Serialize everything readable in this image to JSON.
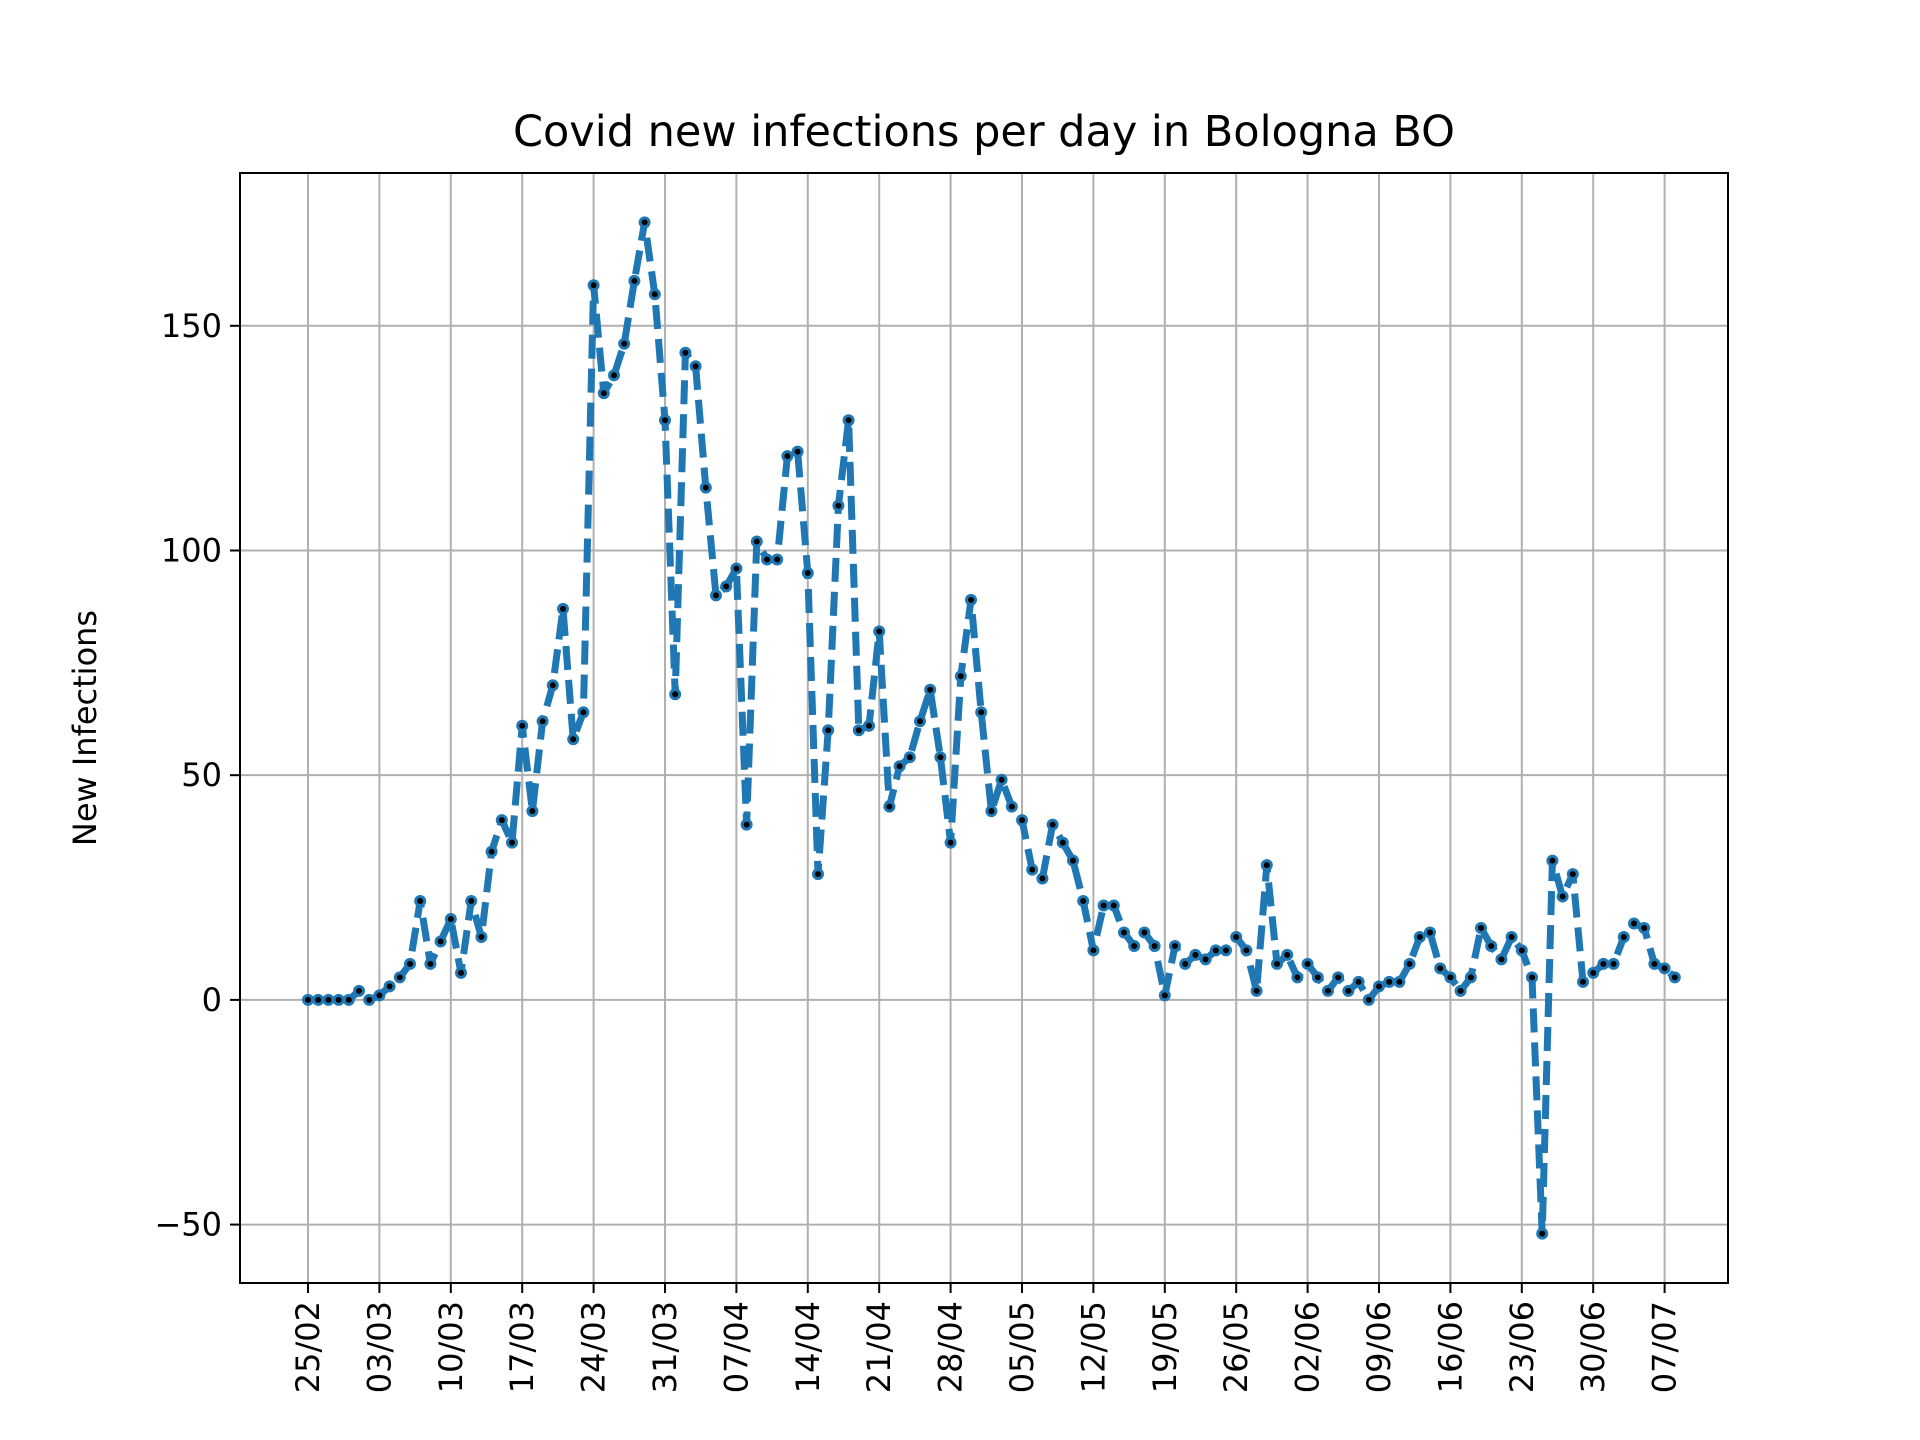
{
  "chart_data": {
    "type": "line",
    "title": "Covid new infections per day in Bologna BO",
    "xlabel": "",
    "ylabel": "New Infections",
    "x_ticks": [
      "25/02",
      "03/03",
      "10/03",
      "17/03",
      "24/03",
      "31/03",
      "07/04",
      "14/04",
      "21/04",
      "28/04",
      "05/05",
      "12/05",
      "19/05",
      "26/05",
      "02/06",
      "09/06",
      "16/06",
      "23/06",
      "30/06",
      "07/07"
    ],
    "y_ticks": [
      -50,
      0,
      50,
      100,
      150
    ],
    "y_tick_labels": [
      "−50",
      "0",
      "50",
      "100",
      "150"
    ],
    "ylim": [
      -63,
      184
    ],
    "x_start_label": "25/02",
    "x_end_label": "08/07",
    "grid": true,
    "line_style": "dashed",
    "series": [
      {
        "name": "",
        "color": "#1f77b4",
        "marker_color": "#000000",
        "values": [
          0,
          0,
          0,
          0,
          0,
          2,
          0,
          1,
          3,
          5,
          8,
          22,
          8,
          13,
          18,
          6,
          22,
          14,
          33,
          40,
          35,
          61,
          42,
          62,
          70,
          87,
          58,
          64,
          159,
          135,
          139,
          146,
          160,
          173,
          157,
          129,
          68,
          144,
          141,
          114,
          90,
          92,
          96,
          39,
          102,
          98,
          98,
          121,
          122,
          95,
          28,
          60,
          110,
          129,
          60,
          61,
          82,
          43,
          52,
          54,
          62,
          69,
          54,
          35,
          72,
          89,
          64,
          42,
          49,
          43,
          40,
          29,
          27,
          39,
          35,
          31,
          22,
          11,
          21,
          21,
          15,
          12,
          15,
          12,
          1,
          12,
          8,
          10,
          9,
          11,
          11,
          14,
          11,
          2,
          30,
          8,
          10,
          5,
          8,
          5,
          2,
          5,
          2,
          4,
          0,
          3,
          4,
          4,
          8,
          14,
          15,
          7,
          5,
          2,
          5,
          16,
          12,
          9,
          14,
          11,
          5,
          -52,
          31,
          23,
          28,
          4,
          6,
          8,
          8,
          14,
          17,
          16,
          8,
          7,
          5
        ]
      }
    ]
  }
}
